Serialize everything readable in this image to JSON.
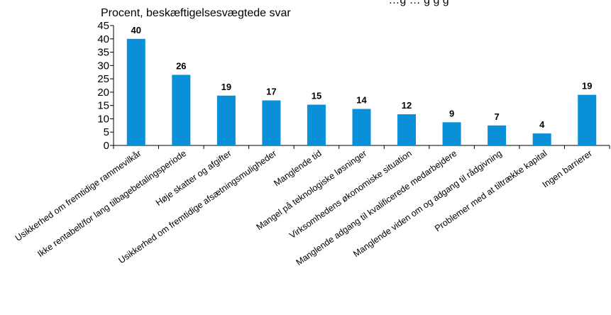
{
  "chart_data": {
    "type": "bar",
    "title": "…g … g g g",
    "unit_label": "Procent, beskæftigelsesvægtede svar",
    "categories": [
      "Usikkerhed om fremtidige rammevilkår",
      "Ikke rentabelt/for lang tilbagebetalingsperiode",
      "Høje skatter og afgifter",
      "Usikkerhed om fremtidige afsætningsmuligheder",
      "Manglende tid",
      "Mangel på teknologiske løsninger",
      "Virksomhedens økonomiske situation",
      "Manglende adgang til kvalificerede medarbejdere",
      "Manglende viden om og adgang til rådgivning",
      "Problemer med at tiltrække kapital",
      "Ingen barrierer"
    ],
    "values": [
      40,
      26.5,
      18.7,
      16.9,
      15.3,
      13.7,
      11.7,
      8.7,
      7.5,
      4.5,
      19
    ],
    "data_labels": [
      "40",
      "26",
      "19",
      "17",
      "15",
      "14",
      "12",
      "9",
      "7",
      "4",
      "19"
    ],
    "ylim": [
      0,
      45
    ],
    "yticks": [
      "0",
      "5",
      "10",
      "15",
      "20",
      "25",
      "30",
      "35",
      "40",
      "45"
    ],
    "grid": false,
    "legend": "none",
    "bar_color": "#0a90d8"
  }
}
